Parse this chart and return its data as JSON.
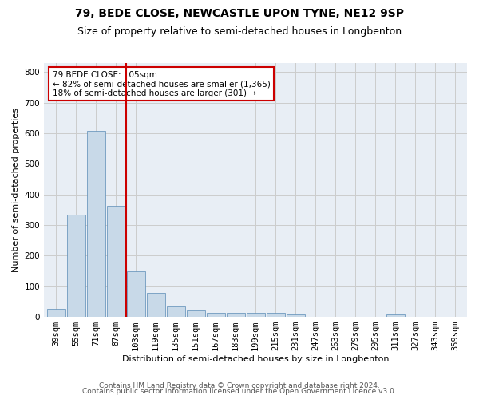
{
  "title": "79, BEDE CLOSE, NEWCASTLE UPON TYNE, NE12 9SP",
  "subtitle": "Size of property relative to semi-detached houses in Longbenton",
  "xlabel": "Distribution of semi-detached houses by size in Longbenton",
  "ylabel": "Number of semi-detached properties",
  "footer1": "Contains HM Land Registry data © Crown copyright and database right 2024.",
  "footer2": "Contains public sector information licensed under the Open Government Licence v3.0.",
  "categories": [
    "39sqm",
    "55sqm",
    "71sqm",
    "87sqm",
    "103sqm",
    "119sqm",
    "135sqm",
    "151sqm",
    "167sqm",
    "183sqm",
    "199sqm",
    "215sqm",
    "231sqm",
    "247sqm",
    "263sqm",
    "279sqm",
    "295sqm",
    "311sqm",
    "327sqm",
    "343sqm",
    "359sqm"
  ],
  "values": [
    27,
    335,
    608,
    362,
    148,
    78,
    35,
    20,
    13,
    13,
    14,
    14,
    8,
    0,
    0,
    0,
    0,
    8,
    0,
    0,
    0
  ],
  "bar_color": "#c8d9e8",
  "bar_edge_color": "#5a8ab5",
  "red_line_index": 3.5,
  "highlight_label": "79 BEDE CLOSE: 105sqm",
  "highlight_smaller": "← 82% of semi-detached houses are smaller (1,365)",
  "highlight_larger": "18% of semi-detached houses are larger (301) →",
  "red_line_color": "#cc0000",
  "annotation_box_color": "#cc0000",
  "ylim": [
    0,
    830
  ],
  "yticks": [
    0,
    100,
    200,
    300,
    400,
    500,
    600,
    700,
    800
  ],
  "title_fontsize": 10,
  "subtitle_fontsize": 9,
  "axis_fontsize": 8,
  "tick_fontsize": 7.5,
  "footer_fontsize": 6.5,
  "annotation_fontsize": 7.5,
  "background_color": "#ffffff",
  "grid_color": "#cccccc",
  "ax_bg_color": "#e8eef5"
}
